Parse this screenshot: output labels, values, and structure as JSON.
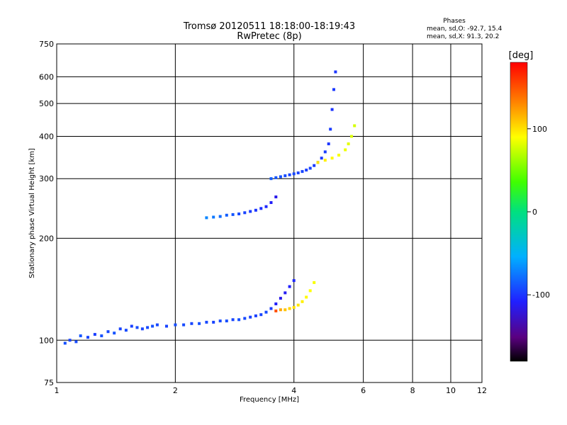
{
  "chart_data": {
    "type": "scatter",
    "title": "Tromsø 20120511 18:18:00-18:19:43",
    "subtitle": "RwPretec (8p)",
    "xlabel": "Frequency [MHz]",
    "ylabel": "Stationary phase Virtual Height [km]",
    "x_scale": "log",
    "y_scale": "log",
    "xlim": [
      1,
      12
    ],
    "ylim": [
      75,
      750
    ],
    "x_ticks": [
      "1",
      "2",
      "4",
      "6",
      "8",
      "10",
      "12"
    ],
    "x_tick_values": [
      1,
      2,
      4,
      6,
      8,
      10,
      12
    ],
    "y_ticks": [
      "75",
      "100",
      "200",
      "300",
      "400",
      "500",
      "600",
      "750"
    ],
    "y_tick_values": [
      75,
      100,
      200,
      300,
      400,
      500,
      600,
      750
    ],
    "grid": true,
    "phase_info": {
      "heading": "Phases",
      "line1": "mean, sd,O: -92.7, 15.4",
      "line2": "mean, sd,X:  91.3, 20.2"
    },
    "colorbar": {
      "label": "[deg]",
      "range": [
        -180,
        180
      ],
      "ticks": [
        "100",
        "0",
        "-100"
      ],
      "tick_values": [
        100,
        0,
        -100
      ],
      "colormap": "rainbow-black-to-red"
    },
    "series": [
      {
        "x": [
          1.05,
          1.08,
          1.12,
          1.15,
          1.2,
          1.25,
          1.3,
          1.35,
          1.4,
          1.45,
          1.5,
          1.55,
          1.6,
          1.65,
          1.7,
          1.75,
          1.8,
          1.9,
          2.0,
          2.1,
          2.2,
          2.3,
          2.4,
          2.5,
          2.6,
          2.7,
          2.8,
          2.9,
          3.0,
          3.1,
          3.2,
          3.3,
          3.4,
          3.5,
          3.6,
          3.7,
          3.8,
          3.9,
          4.0
        ],
        "y": [
          98,
          100,
          99,
          103,
          102,
          104,
          103,
          106,
          105,
          108,
          107,
          110,
          109,
          108,
          109,
          110,
          111,
          110,
          111,
          111,
          112,
          112,
          113,
          113,
          114,
          114,
          115,
          115,
          116,
          117,
          118,
          119,
          121,
          124,
          128,
          133,
          138,
          144,
          150
        ],
        "phase": [
          -90,
          -95,
          -92,
          -88,
          -94,
          -97,
          -90,
          -93,
          -89,
          -95,
          -92,
          -96,
          -91,
          -94,
          -92,
          -90,
          -93,
          -95,
          -91,
          -92,
          -94,
          -90,
          -93,
          -95,
          -92,
          -91,
          -94,
          -90,
          -93,
          -95,
          -96,
          -94,
          -92,
          -98,
          -110,
          -115,
          -112,
          -108,
          -105
        ]
      },
      {
        "x": [
          2.4,
          2.5,
          2.6,
          2.7,
          2.8,
          2.9,
          3.0,
          3.1,
          3.2,
          3.3,
          3.4,
          3.5,
          3.6
        ],
        "y": [
          230,
          231,
          232,
          234,
          235,
          236,
          238,
          240,
          242,
          245,
          248,
          255,
          265
        ],
        "phase": [
          -70,
          -75,
          -80,
          -85,
          -88,
          -92,
          -95,
          -98,
          -100,
          -102,
          -105,
          -110,
          -115
        ]
      },
      {
        "x": [
          3.5,
          3.6,
          3.7,
          3.8,
          3.9,
          4.0,
          4.1,
          4.2,
          4.3,
          4.4,
          4.5,
          4.6,
          4.7,
          4.8,
          4.9,
          4.95,
          5.0,
          5.05,
          5.1
        ],
        "y": [
          300,
          302,
          304,
          306,
          308,
          310,
          312,
          315,
          318,
          322,
          328,
          335,
          345,
          360,
          380,
          420,
          480,
          550,
          620
        ],
        "phase": [
          -85,
          -88,
          -90,
          -92,
          -95,
          -93,
          -96,
          -94,
          -97,
          -95,
          -98,
          -96,
          -99,
          -97,
          -100,
          -98,
          -101,
          -99,
          -100
        ]
      },
      {
        "x": [
          3.6,
          3.7,
          3.8,
          3.9,
          4.0,
          4.1,
          4.2,
          4.3,
          4.4,
          4.5
        ],
        "y": [
          122,
          123,
          123,
          124,
          125,
          127,
          130,
          134,
          140,
          148
        ],
        "phase": [
          150,
          120,
          110,
          105,
          100,
          98,
          95,
          92,
          90,
          88
        ]
      },
      {
        "x": [
          4.6,
          4.8,
          5.0,
          5.2,
          5.4,
          5.5,
          5.6,
          5.7
        ],
        "y": [
          335,
          340,
          345,
          352,
          365,
          380,
          400,
          430
        ],
        "phase": [
          100,
          95,
          92,
          88,
          85,
          82,
          80,
          78
        ]
      }
    ]
  }
}
